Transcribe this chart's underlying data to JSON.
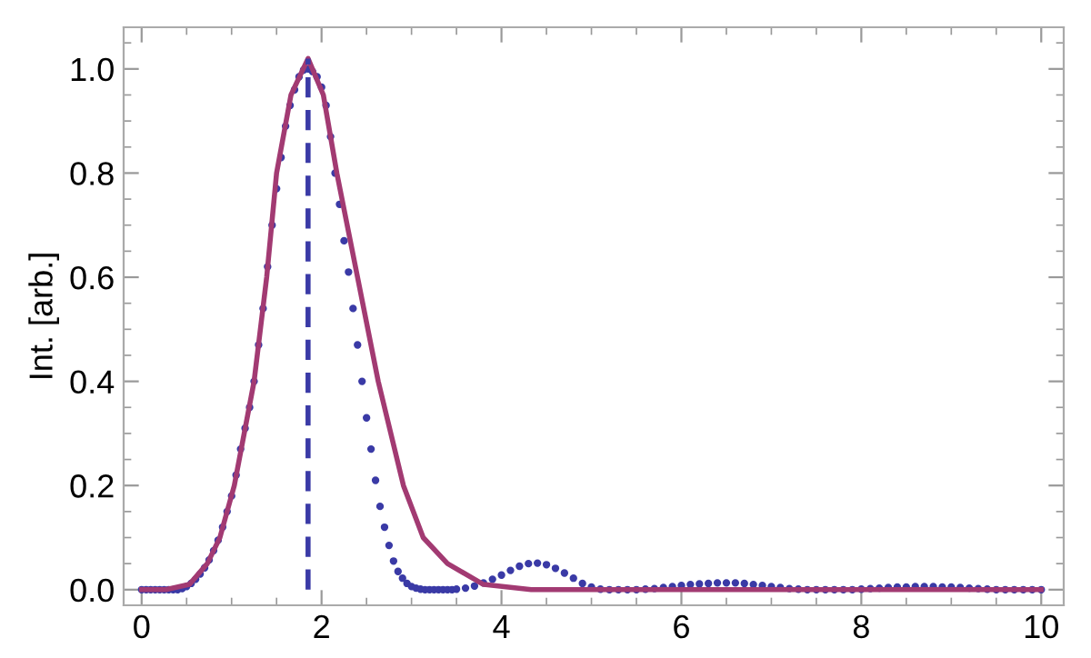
{
  "chart_data": {
    "type": "line",
    "ylabel": "Int. [arb.]",
    "xlim": [
      -0.2,
      10.25
    ],
    "ylim": [
      -0.03,
      1.08
    ],
    "xticks": [
      0,
      2,
      4,
      6,
      8,
      10
    ],
    "yticks": [
      {
        "value": 0,
        "label": "0.0"
      },
      {
        "value": 0.2,
        "label": "0.2"
      },
      {
        "value": 0.4,
        "label": "0.4"
      },
      {
        "value": 0.6,
        "label": "0.6"
      },
      {
        "value": 0.8,
        "label": "0.8"
      },
      {
        "value": 1.0,
        "label": "1.0"
      }
    ],
    "grid": false,
    "legend": false,
    "series": [
      {
        "type": "scatter",
        "color": "#3a3aa6",
        "marker": "circle",
        "x": [
          0,
          0.05,
          0.1,
          0.15,
          0.2,
          0.25,
          0.3,
          0.35,
          0.4,
          0.45,
          0.5,
          0.55,
          0.6,
          0.65,
          0.7,
          0.75,
          0.8,
          0.85,
          0.9,
          0.95,
          1.0,
          1.05,
          1.1,
          1.15,
          1.2,
          1.25,
          1.3,
          1.35,
          1.4,
          1.45,
          1.5,
          1.55,
          1.6,
          1.65,
          1.7,
          1.75,
          1.8,
          1.85,
          1.9,
          1.95,
          2.0,
          2.05,
          2.1,
          2.15,
          2.2,
          2.25,
          2.3,
          2.35,
          2.4,
          2.45,
          2.5,
          2.55,
          2.6,
          2.65,
          2.7,
          2.75,
          2.8,
          2.85,
          2.9,
          2.95,
          3.0,
          3.05,
          3.1,
          3.15,
          3.2,
          3.25,
          3.3,
          3.35,
          3.4,
          3.45,
          3.5,
          3.6,
          3.7,
          3.8,
          3.9,
          4.0,
          4.1,
          4.2,
          4.3,
          4.4,
          4.5,
          4.6,
          4.7,
          4.8,
          4.9,
          5.0,
          5.1,
          5.2,
          5.3,
          5.4,
          5.5,
          5.6,
          5.7,
          5.8,
          5.9,
          6.0,
          6.1,
          6.2,
          6.3,
          6.4,
          6.5,
          6.6,
          6.7,
          6.8,
          6.9,
          7.0,
          7.1,
          7.2,
          7.3,
          7.4,
          7.5,
          7.6,
          7.7,
          7.8,
          7.9,
          8.0,
          8.1,
          8.2,
          8.3,
          8.4,
          8.5,
          8.6,
          8.7,
          8.8,
          8.9,
          9.0,
          9.1,
          9.2,
          9.3,
          9.4,
          9.5,
          9.6,
          9.7,
          9.8,
          9.9,
          10.0
        ],
        "values": [
          0,
          0,
          0,
          0,
          0,
          0,
          0,
          0,
          0,
          0.002,
          0.006,
          0.012,
          0.02,
          0.03,
          0.042,
          0.057,
          0.075,
          0.095,
          0.12,
          0.15,
          0.18,
          0.22,
          0.27,
          0.31,
          0.35,
          0.4,
          0.47,
          0.54,
          0.62,
          0.7,
          0.77,
          0.83,
          0.89,
          0.93,
          0.96,
          0.985,
          0.998,
          1.0,
          0.995,
          0.985,
          0.965,
          0.93,
          0.87,
          0.8,
          0.74,
          0.67,
          0.61,
          0.54,
          0.47,
          0.4,
          0.33,
          0.27,
          0.21,
          0.16,
          0.12,
          0.085,
          0.055,
          0.035,
          0.022,
          0.012,
          0.006,
          0.003,
          0.001,
          0,
          0,
          0,
          0,
          0,
          0,
          0,
          0.001,
          0.003,
          0.007,
          0.013,
          0.02,
          0.028,
          0.037,
          0.045,
          0.05,
          0.051,
          0.048,
          0.041,
          0.032,
          0.022,
          0.012,
          0.005,
          0.001,
          0,
          0,
          0,
          0,
          0.001,
          0.002,
          0.004,
          0.006,
          0.008,
          0.01,
          0.011,
          0.012,
          0.013,
          0.013,
          0.013,
          0.012,
          0.01,
          0.008,
          0.006,
          0.004,
          0.002,
          0.001,
          0,
          0,
          0,
          0,
          0,
          0,
          0.001,
          0.002,
          0.003,
          0.004,
          0.005,
          0.005,
          0.006,
          0.006,
          0.006,
          0.005,
          0.005,
          0.004,
          0.003,
          0.002,
          0.001,
          0,
          0,
          0,
          0,
          0,
          0
        ]
      },
      {
        "color": "#a23a72",
        "line_style": "solid",
        "x": [
          0,
          0.27,
          0.53,
          0.73,
          0.87,
          1.03,
          1.25,
          1.39,
          1.5,
          1.66,
          1.85,
          2.02,
          2.17,
          2.4,
          2.63,
          2.91,
          3.13,
          3.4,
          3.8,
          4.33,
          10
        ],
        "values": [
          0,
          0,
          0.01,
          0.05,
          0.1,
          0.2,
          0.4,
          0.6,
          0.8,
          0.95,
          1.02,
          0.95,
          0.8,
          0.6,
          0.4,
          0.2,
          0.1,
          0.05,
          0.01,
          0,
          0
        ]
      },
      {
        "color": "#3a3aa6",
        "line_style": "dashed",
        "x": [
          1.85,
          1.85
        ],
        "values": [
          0,
          1.02
        ]
      }
    ]
  }
}
